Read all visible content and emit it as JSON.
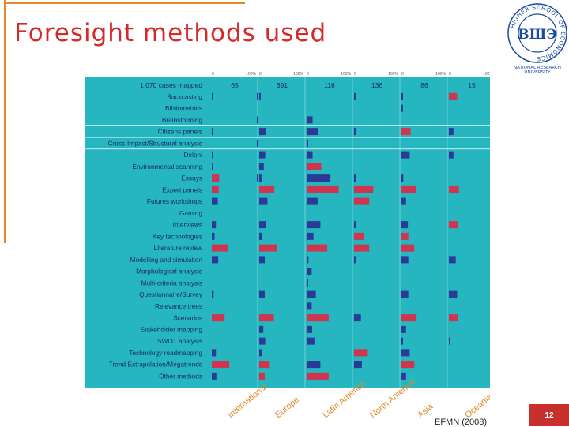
{
  "slide": {
    "title": "Foresight methods used",
    "source": "EFMN (2008)",
    "page_number": "12"
  },
  "logo": {
    "ring_text": "HIGHER SCHOOL OF ECONOMICS",
    "monogram": "ВШЭ",
    "caption_line1": "NATIONAL RESEARCH",
    "caption_line2": "UNIVERSITY",
    "color": "#1a4b9c"
  },
  "chart_data": {
    "type": "bar",
    "header_label": "1 070 cases mapped",
    "axis_min_label": "0",
    "axis_max_label": "100%",
    "methods": [
      "Backcasting",
      "Bibliometrics",
      "Brainstorming",
      "Citizens panels",
      "Cross-Impact/Structural analysis",
      "Delphi",
      "Environmental scanning",
      "Essays",
      "Expert panels",
      "Futures workshops",
      "Gaming",
      "Interviews",
      "Key technologies",
      "Literature review",
      "Modelling and simulation",
      "Morphological analysis",
      "Multi-criteria analysis",
      "Questionnaire/Survey",
      "Relevance trees",
      "Scenarios",
      "Stakeholder mapping",
      "SWOT analysis",
      "Technology roadmapping",
      "Trend Extrapolation/Megatrends",
      "Other methods"
    ],
    "highlight_method_indices": [
      2,
      3,
      4
    ],
    "colors": {
      "panel": "#26b6bf",
      "blue": "#2b3a96",
      "red": "#d0344e",
      "text": "#1a2a6c",
      "region": "#e08a2a"
    },
    "series": [
      {
        "name": "International",
        "count": "65",
        "values": [
          3,
          0,
          0,
          3,
          0,
          3,
          3,
          16,
          15,
          13,
          0,
          9,
          6,
          35,
          14,
          0,
          0,
          4,
          0,
          28,
          0,
          0,
          9,
          38,
          10
        ],
        "colors": [
          "b",
          "b",
          "b",
          "b",
          "b",
          "b",
          "b",
          "r",
          "r",
          "b",
          "b",
          "b",
          "b",
          "r",
          "b",
          "b",
          "b",
          "b",
          "b",
          "r",
          "b",
          "b",
          "b",
          "r",
          "b"
        ]
      },
      {
        "name": "Europe",
        "count": "691",
        "values": [
          2,
          0,
          0,
          15,
          0,
          13,
          10,
          5,
          33,
          18,
          0,
          14,
          7,
          38,
          12,
          0,
          0,
          12,
          0,
          32,
          9,
          13,
          6,
          23,
          12
        ],
        "colors": [
          "b",
          "b",
          "b",
          "b",
          "b",
          "b",
          "b",
          "b",
          "r",
          "b",
          "b",
          "b",
          "b",
          "r",
          "b",
          "b",
          "b",
          "b",
          "b",
          "r",
          "b",
          "b",
          "b",
          "r",
          "r"
        ],
        "marks": [
          {
            "row": 0,
            "dir": "left"
          },
          {
            "row": 2,
            "dir": "left"
          },
          {
            "row": 4,
            "dir": "left"
          },
          {
            "row": 7,
            "dir": "left"
          }
        ]
      },
      {
        "name": "Latin America",
        "count": "116",
        "values": [
          0,
          0,
          13,
          25,
          1,
          13,
          32,
          52,
          70,
          24,
          0,
          30,
          15,
          45,
          4,
          11,
          2,
          20,
          11,
          48,
          12,
          17,
          0,
          30,
          48
        ],
        "colors": [
          "b",
          "b",
          "b",
          "b",
          "b",
          "b",
          "r",
          "b",
          "r",
          "b",
          "b",
          "b",
          "b",
          "r",
          "b",
          "b",
          "b",
          "b",
          "b",
          "r",
          "b",
          "b",
          "b",
          "b",
          "r"
        ]
      },
      {
        "name": "North America",
        "count": "136",
        "values": [
          4,
          0,
          0,
          2,
          0,
          0,
          0,
          3,
          42,
          33,
          0,
          5,
          22,
          33,
          4,
          0,
          0,
          0,
          0,
          15,
          0,
          0,
          30,
          17,
          0
        ],
        "colors": [
          "b",
          "b",
          "b",
          "b",
          "b",
          "b",
          "b",
          "b",
          "r",
          "r",
          "b",
          "b",
          "r",
          "r",
          "b",
          "b",
          "b",
          "b",
          "b",
          "b",
          "b",
          "b",
          "r",
          "b",
          "b"
        ]
      },
      {
        "name": "Asia",
        "count": "86",
        "values": [
          2,
          2,
          0,
          20,
          0,
          18,
          0,
          4,
          32,
          10,
          0,
          14,
          15,
          28,
          15,
          0,
          0,
          15,
          0,
          33,
          10,
          3,
          18,
          28,
          10
        ],
        "colors": [
          "b",
          "b",
          "b",
          "r",
          "b",
          "b",
          "b",
          "b",
          "r",
          "b",
          "b",
          "b",
          "r",
          "r",
          "b",
          "b",
          "b",
          "b",
          "b",
          "r",
          "b",
          "b",
          "b",
          "r",
          "b"
        ]
      },
      {
        "name": "Oceania",
        "count": "15",
        "values": [
          18,
          0,
          0,
          10,
          0,
          10,
          0,
          0,
          22,
          0,
          0,
          20,
          0,
          0,
          15,
          0,
          0,
          18,
          0,
          20,
          0,
          3,
          0,
          0,
          0
        ],
        "colors": [
          "r",
          "b",
          "b",
          "b",
          "b",
          "b",
          "b",
          "b",
          "r",
          "b",
          "b",
          "r",
          "b",
          "b",
          "b",
          "b",
          "b",
          "b",
          "b",
          "r",
          "b",
          "b",
          "b",
          "b",
          "b"
        ]
      }
    ]
  }
}
